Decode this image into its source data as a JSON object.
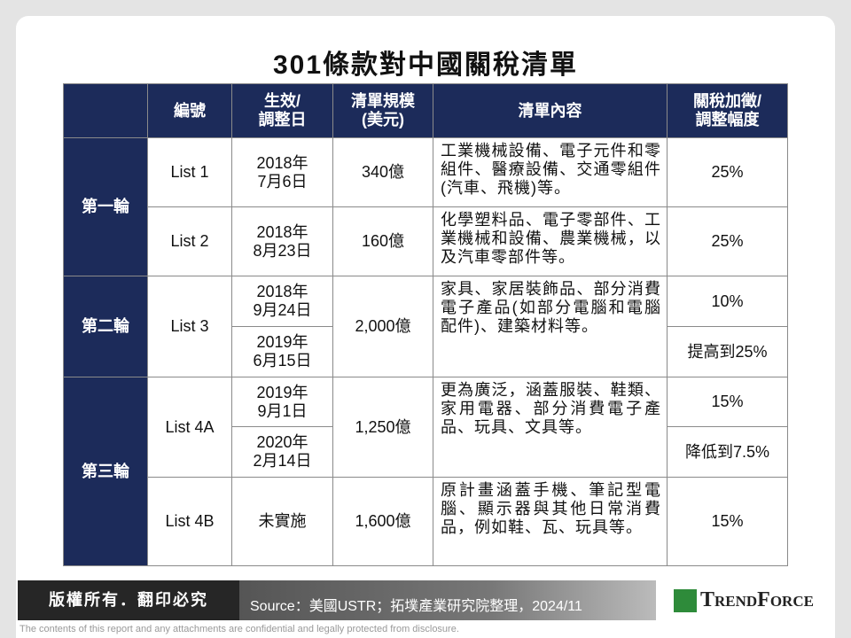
{
  "title": "301條款對中國關稅清單",
  "table": {
    "header": [
      "",
      "編號",
      "生效/\n調整日",
      "清單規模\n(美元)",
      "清單內容",
      "關稅加徵/\n調整幅度"
    ],
    "rounds": [
      {
        "name": "第一輪",
        "lists": [
          {
            "id": "List 1",
            "size": "340億",
            "content": "工業機械設備、電子元件和零組件、醫療設備、交通零組件(汽車、飛機)等。",
            "entries": [
              {
                "date": "2018年\n7月6日",
                "rate": "25%"
              }
            ]
          },
          {
            "id": "List 2",
            "size": "160億",
            "content": "化學塑料品、電子零部件、工業機械和設備、農業機械，以及汽車零部件等。",
            "entries": [
              {
                "date": "2018年\n8月23日",
                "rate": "25%"
              }
            ]
          }
        ]
      },
      {
        "name": "第二輪",
        "lists": [
          {
            "id": "List 3",
            "size": "2,000億",
            "content": "家具、家居裝飾品、部分消費電子產品(如部分電腦和電腦配件)、建築材料等。",
            "entries": [
              {
                "date": "2018年\n9月24日",
                "rate": "10%"
              },
              {
                "date": "2019年\n6月15日",
                "rate": "提高到25%"
              }
            ]
          }
        ]
      },
      {
        "name": "第三輪",
        "lists": [
          {
            "id": "List 4A",
            "size": "1,250億",
            "content": "更為廣泛，涵蓋服裝、鞋類、家用電器、部分消費電子產品、玩具、文具等。",
            "entries": [
              {
                "date": "2019年\n9月1日",
                "rate": "15%"
              },
              {
                "date": "2020年\n2月14日",
                "rate": "降低到7.5%"
              }
            ]
          },
          {
            "id": "List 4B",
            "size": "1,600億",
            "content": "原計畫涵蓋手機、筆記型電腦、顯示器與其他日常消費品，例如鞋、瓦、玩具等。",
            "entries": [
              {
                "date": "未實施",
                "rate": "15%"
              }
            ]
          }
        ]
      }
    ]
  },
  "footer": {
    "copyright": "版權所有．翻印必究",
    "source": "Source：美國USTR；拓墣產業研究院整理，2024/11",
    "logo": "TrendForce",
    "disclaimer": "The contents of this report and any attachments are confidential and legally protected from disclosure."
  }
}
